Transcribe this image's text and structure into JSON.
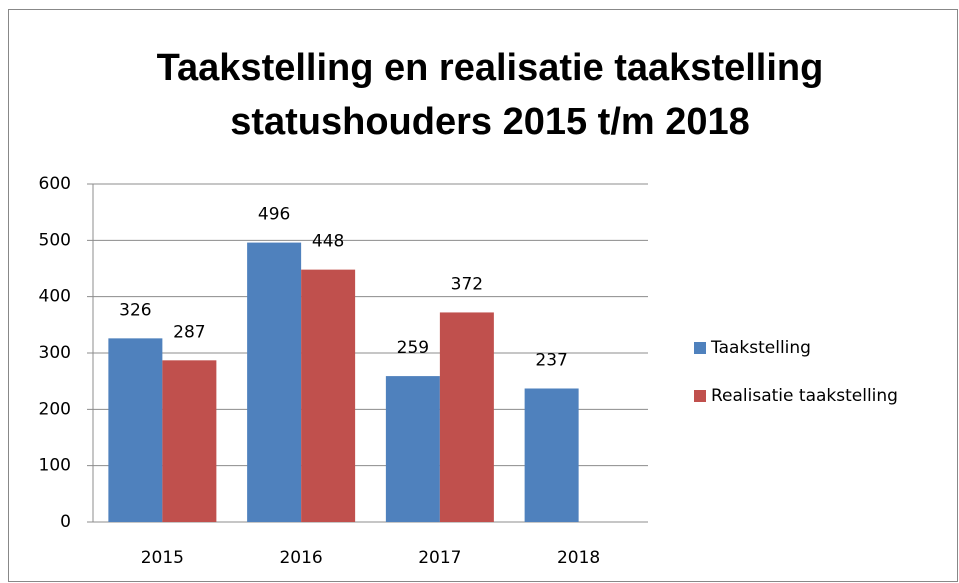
{
  "chart_data": {
    "type": "bar",
    "title": [
      "Taakstelling en realisatie taakstelling",
      "statushouders 2015 t/m 2018"
    ],
    "categories": [
      "2015",
      "2016",
      "2017",
      "2018"
    ],
    "series": [
      {
        "name": "Taakstelling",
        "color": "#4f81bd",
        "values": [
          326,
          496,
          259,
          237
        ]
      },
      {
        "name": "Realisatie taakstelling",
        "color": "#c0504d",
        "values": [
          287,
          448,
          372,
          null
        ]
      }
    ],
    "ylim": [
      0,
      600
    ],
    "yticks": [
      0,
      100,
      200,
      300,
      400,
      500,
      600
    ],
    "grid": true,
    "legend": "right"
  }
}
